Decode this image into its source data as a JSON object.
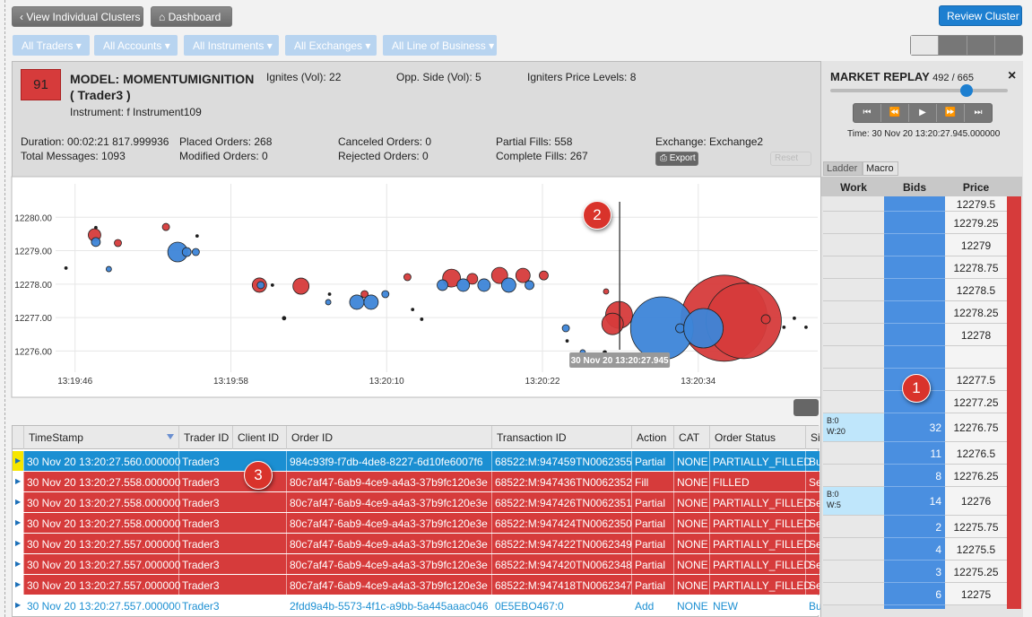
{
  "toolbar": {
    "back": "View Individual Clusters",
    "dashboard": "Dashboard",
    "review": "Review Cluster"
  },
  "filters": [
    "All Traders",
    "All Accounts",
    "All Instruments",
    "All Exchanges",
    "All Line of Business"
  ],
  "header": {
    "badge": "91",
    "model": "MODEL: MOMENTUMIGNITION",
    "trader": "( Trader3 )",
    "instrument": "Instrument: f Instrument109",
    "ignites": "Ignites (Vol): 22",
    "opp_side": "Opp. Side (Vol): 5",
    "levels": "Igniters Price Levels: 8",
    "stats": [
      [
        "Duration: 00:02:21 817.999936",
        "Total Messages: 1093"
      ],
      [
        "Placed Orders: 268",
        "Modified Orders: 0"
      ],
      [
        "Canceled Orders: 0",
        "Rejected Orders: 0"
      ],
      [
        "Partial Fills: 558",
        "Complete Fills: 267"
      ],
      [
        "Exchange: Exchange2"
      ]
    ],
    "export": "Export",
    "reset": "Reset"
  },
  "chart_data": {
    "type": "scatter",
    "xlim": [
      "13:19:44.5",
      "13:20:43.2"
    ],
    "xticks": [
      "13:19:46",
      "13:19:58",
      "13:20:10",
      "13:20:22",
      "13:20:34"
    ],
    "ylim": [
      12275.5,
      12281
    ],
    "yticks": [
      {
        "value": 12276,
        "label": "12276.00"
      },
      {
        "value": 12277,
        "label": "12277.00"
      },
      {
        "value": 12278,
        "label": "12278.00"
      },
      {
        "value": 12279,
        "label": "12279.00"
      },
      {
        "value": 12280,
        "label": "12280.00"
      }
    ],
    "grid": true,
    "cursor": {
      "x": "13:20:27.945",
      "label": "30 Nov 20 13:20:27.945"
    },
    "series": [
      {
        "color": "#d63b3b",
        "x": [
          "13:19:47.5",
          "13:19:49.3",
          "13:19:53",
          "13:20:00.2",
          "13:20:03.4",
          "13:20:08.3",
          "13:20:11.6",
          "13:20:15",
          "13:20:16.6",
          "13:20:18.7",
          "13:20:20.5",
          "13:20:22.1",
          "13:20:26.9",
          "13:20:27.9",
          "13:20:27.4",
          "13:20:36",
          "13:20:37.5",
          "13:20:39.2"
        ],
        "values": [
          12279.47,
          12279.23,
          12279.71,
          12277.97,
          12277.94,
          12277.7,
          12278.21,
          12278.18,
          12278.16,
          12278.26,
          12278.26,
          12278.26,
          12277.78,
          12277.08,
          12276.81,
          12276.98,
          12276.9,
          12276.95
        ],
        "sizes": [
          7,
          4,
          4,
          8,
          9,
          4,
          4,
          10,
          6,
          9,
          8,
          5,
          3,
          15,
          12,
          48,
          42,
          5
        ]
      },
      {
        "color": "#3d85d8",
        "x": [
          "13:19:47.6",
          "13:19:48.6",
          "13:19:53.9",
          "13:19:54.6",
          "13:19:55.3",
          "13:20:00.3",
          "13:20:05.5",
          "13:20:07.7",
          "13:20:08.8",
          "13:20:09.9",
          "13:20:14.3",
          "13:20:15.9",
          "13:20:17.5",
          "13:20:19.4",
          "13:20:21",
          "13:20:23.8",
          "13:20:25.1",
          "13:20:31.2",
          "13:20:32.6",
          "13:20:34.4"
        ],
        "values": [
          12279.26,
          12278.45,
          12278.96,
          12278.96,
          12278.96,
          12277.97,
          12277.46,
          12277.46,
          12277.46,
          12277.7,
          12277.97,
          12277.97,
          12277.97,
          12277.97,
          12277.97,
          12276.68,
          12275.96,
          12276.68,
          12276.68,
          12276.68
        ],
        "sizes": [
          5,
          3,
          11,
          5,
          4,
          4,
          3,
          8,
          8,
          4,
          6,
          7,
          7,
          8,
          5,
          4,
          3,
          35,
          5,
          22
        ]
      },
      {
        "color": "#111111",
        "x": [
          "13:19:45.3",
          "13:19:47.6",
          "13:19:55.4",
          "13:20:01.2",
          "13:20:02.1",
          "13:20:05.6",
          "13:20:12",
          "13:20:12.7",
          "13:20:23.9",
          "13:20:26.8",
          "13:20:40.6",
          "13:20:41.4",
          "13:20:42.3"
        ],
        "values": [
          12278.48,
          12279.69,
          12279.44,
          12277.97,
          12276.98,
          12277.7,
          12277.24,
          12276.95,
          12276.3,
          12275.96,
          12276.71,
          12276.98,
          12276.71
        ],
        "sizes": [
          1.5,
          1.5,
          1.5,
          1.5,
          2,
          1.5,
          1.5,
          1.5,
          1.5,
          2,
          1.5,
          1.5,
          1.5
        ]
      }
    ]
  },
  "table": {
    "columns": [
      "TimeStamp",
      "Trader ID",
      "Client ID",
      "Order ID",
      "Transaction ID",
      "Action",
      "CAT",
      "Order Status",
      "Sid"
    ],
    "rows": [
      {
        "color": "#1b8fd2",
        "cells": [
          "30 Nov 20 13:20:27.560.000000",
          "Trader3",
          null,
          "984c93f9-f7db-4de8-8227-6d10fe6007f6",
          "68522:M:947459TN0062355",
          "Partial",
          "NONE",
          "PARTIALLY_FILLED",
          "Bu"
        ]
      },
      {
        "color": "#d63b3b",
        "cells": [
          "30 Nov 20 13:20:27.558.000000",
          "Trader3",
          null,
          "80c7af47-6ab9-4ce9-a4a3-37b9fc120e3e",
          "68522:M:947436TN0062352",
          "Fill",
          "NONE",
          "FILLED",
          "Se"
        ]
      },
      {
        "color": "#d63b3b",
        "cells": [
          "30 Nov 20 13:20:27.558.000000",
          "Trader3",
          null,
          "80c7af47-6ab9-4ce9-a4a3-37b9fc120e3e",
          "68522:M:947426TN0062351",
          "Partial",
          "NONE",
          "PARTIALLY_FILLED",
          "Se"
        ]
      },
      {
        "color": "#d63b3b",
        "cells": [
          "30 Nov 20 13:20:27.558.000000",
          "Trader3",
          null,
          "80c7af47-6ab9-4ce9-a4a3-37b9fc120e3e",
          "68522:M:947424TN0062350",
          "Partial",
          "NONE",
          "PARTIALLY_FILLED",
          "Se"
        ]
      },
      {
        "color": "#d63b3b",
        "cells": [
          "30 Nov 20 13:20:27.557.000000",
          "Trader3",
          null,
          "80c7af47-6ab9-4ce9-a4a3-37b9fc120e3e",
          "68522:M:947422TN0062349",
          "Partial",
          "NONE",
          "PARTIALLY_FILLED",
          "Se"
        ]
      },
      {
        "color": "#d63b3b",
        "cells": [
          "30 Nov 20 13:20:27.557.000000",
          "Trader3",
          null,
          "80c7af47-6ab9-4ce9-a4a3-37b9fc120e3e",
          "68522:M:947420TN0062348",
          "Partial",
          "NONE",
          "PARTIALLY_FILLED",
          "Se"
        ]
      },
      {
        "color": "#d63b3b",
        "cells": [
          "30 Nov 20 13:20:27.557.000000",
          "Trader3",
          null,
          "80c7af47-6ab9-4ce9-a4a3-37b9fc120e3e",
          "68522:M:947418TN0062347",
          "Partial",
          "NONE",
          "PARTIALLY_FILLED",
          "Se"
        ]
      },
      {
        "color": "#ffffff",
        "cells": [
          "30 Nov 20 13:20:27.557.000000",
          "Trader3",
          null,
          "2fdd9a4b-5573-4f1c-a9bb-5a445aaac046",
          "0E5EBO467:0",
          "Add",
          "NONE",
          "NEW",
          "Bu"
        ]
      }
    ]
  },
  "replay": {
    "title": "MARKET REPLAY",
    "progress": "492 / 665",
    "close": "×",
    "time": "Time: 30 Nov 20 13:20:27.945.000000"
  },
  "ladder": {
    "tabs": [
      "Ladder",
      "Macro"
    ],
    "columns": [
      "Work",
      "Bids",
      "Price"
    ],
    "rows": [
      {
        "price": "12279.5",
        "bids": null,
        "work": null
      },
      {
        "price": "12279.25",
        "bids": null,
        "work": null
      },
      {
        "price": "12279",
        "bids": null,
        "work": null
      },
      {
        "price": "12278.75",
        "bids": null,
        "work": null
      },
      {
        "price": "12278.5",
        "bids": null,
        "work": null
      },
      {
        "price": "12278.25",
        "bids": null,
        "work": null
      },
      {
        "price": "12278",
        "bids": null,
        "work": null
      },
      {
        "price": null,
        "bids": null,
        "work": null
      },
      {
        "price": "12277.5",
        "bids": null,
        "work": null
      },
      {
        "price": "12277.25",
        "bids": null,
        "work": null
      },
      {
        "price": "12276.75",
        "bids": "32",
        "work": [
          "B:0",
          "W:20"
        ]
      },
      {
        "price": "12276.5",
        "bids": "11",
        "work": null
      },
      {
        "price": "12276.25",
        "bids": "8",
        "work": null
      },
      {
        "price": "12276",
        "bids": "14",
        "work": [
          "B:0",
          "W:5"
        ]
      },
      {
        "price": "12275.75",
        "bids": "2",
        "work": null
      },
      {
        "price": "12275.5",
        "bids": "4",
        "work": null
      },
      {
        "price": "12275.25",
        "bids": "3",
        "work": null
      },
      {
        "price": "12275",
        "bids": "6",
        "work": null
      }
    ]
  },
  "callouts": [
    "1",
    "2",
    "3"
  ]
}
